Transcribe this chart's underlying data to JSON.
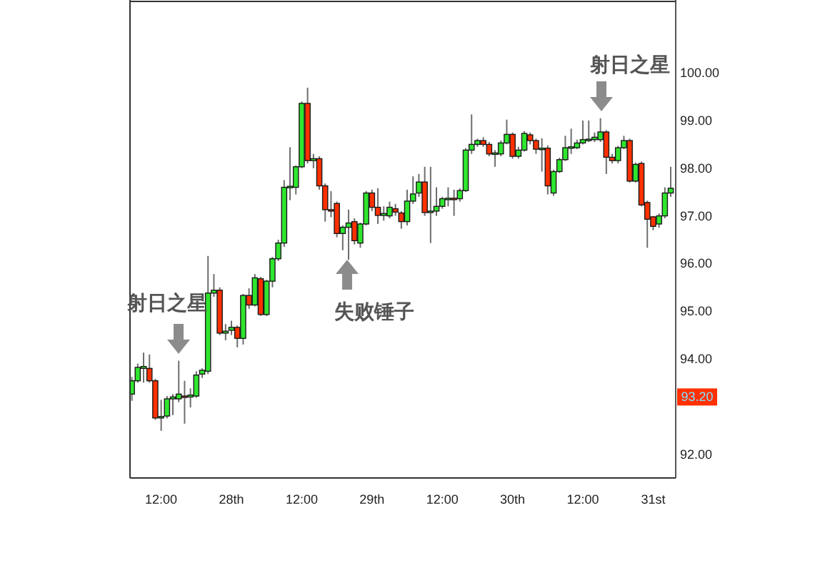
{
  "chart_data": {
    "type": "candlestick",
    "categories": [
      null,
      null,
      null,
      null,
      null,
      "12:00",
      null,
      null,
      null,
      null,
      null,
      null,
      null,
      null,
      null,
      null,
      null,
      "28th",
      null,
      null,
      null,
      null,
      null,
      null,
      null,
      null,
      null,
      null,
      null,
      "12:00",
      null,
      null,
      null,
      null,
      null,
      null,
      null,
      null,
      null,
      null,
      null,
      "29th",
      null,
      null,
      null,
      null,
      null,
      null,
      null,
      null,
      null,
      null,
      null,
      "12:00",
      null,
      null,
      null,
      null,
      null,
      null,
      null,
      null,
      null,
      null,
      null,
      "30th",
      null,
      null,
      null,
      null,
      null,
      null,
      null,
      null,
      null,
      null,
      null,
      "12:00",
      null,
      null,
      null,
      null,
      null,
      null,
      null,
      null,
      null,
      null,
      null,
      "31st",
      null,
      null,
      null
    ],
    "ohlc": [
      [
        93.26,
        93.62,
        93.12,
        93.54
      ],
      [
        93.54,
        93.9,
        93.5,
        93.82
      ],
      [
        93.8,
        94.13,
        93.5,
        93.84
      ],
      [
        93.8,
        94.09,
        93.5,
        93.54
      ],
      [
        93.54,
        93.58,
        92.72,
        92.76
      ],
      [
        92.76,
        93.14,
        92.49,
        92.79
      ],
      [
        92.8,
        93.22,
        92.75,
        93.16
      ],
      [
        93.16,
        93.26,
        92.82,
        93.2
      ],
      [
        93.16,
        93.96,
        93.09,
        93.26
      ],
      [
        93.22,
        93.54,
        92.64,
        93.2
      ],
      [
        93.2,
        93.38,
        92.98,
        93.24
      ],
      [
        93.22,
        93.74,
        93.18,
        93.66
      ],
      [
        93.68,
        93.8,
        93.6,
        93.76
      ],
      [
        93.74,
        96.16,
        93.68,
        95.38
      ],
      [
        95.38,
        95.78,
        95.3,
        95.44
      ],
      [
        95.44,
        95.5,
        94.5,
        94.54
      ],
      [
        94.54,
        94.73,
        94.39,
        94.58
      ],
      [
        94.6,
        94.8,
        94.5,
        94.66
      ],
      [
        94.66,
        94.7,
        94.24,
        94.43
      ],
      [
        94.43,
        95.36,
        94.3,
        95.33
      ],
      [
        95.33,
        95.48,
        95.05,
        95.13
      ],
      [
        95.13,
        95.78,
        95.1,
        95.7
      ],
      [
        95.68,
        95.72,
        94.9,
        94.93
      ],
      [
        94.93,
        95.66,
        94.9,
        95.63
      ],
      [
        95.63,
        96.14,
        95.5,
        96.1
      ],
      [
        96.1,
        96.5,
        96.05,
        96.43
      ],
      [
        96.43,
        97.75,
        96.35,
        97.6
      ],
      [
        97.6,
        98.44,
        97.33,
        97.62
      ],
      [
        97.6,
        98.06,
        97.45,
        98.03
      ],
      [
        98.03,
        99.4,
        98.0,
        99.36
      ],
      [
        99.36,
        99.69,
        98.1,
        98.16
      ],
      [
        98.16,
        98.3,
        98.0,
        98.2
      ],
      [
        98.2,
        98.25,
        97.55,
        97.63
      ],
      [
        97.63,
        97.68,
        96.88,
        97.13
      ],
      [
        97.13,
        97.52,
        96.97,
        97.1
      ],
      [
        97.26,
        97.3,
        96.55,
        96.63
      ],
      [
        96.63,
        96.8,
        96.28,
        96.76
      ],
      [
        96.76,
        97.13,
        96.08,
        96.85
      ],
      [
        96.88,
        96.95,
        96.4,
        96.48
      ],
      [
        96.43,
        96.86,
        96.33,
        96.83
      ],
      [
        96.83,
        97.52,
        96.8,
        97.48
      ],
      [
        97.48,
        97.55,
        97.1,
        97.18
      ],
      [
        97.18,
        97.58,
        96.83,
        97.01
      ],
      [
        97.01,
        97.2,
        96.9,
        97.05
      ],
      [
        97.0,
        97.3,
        96.95,
        97.18
      ],
      [
        97.15,
        97.25,
        97.0,
        97.08
      ],
      [
        97.06,
        97.1,
        96.73,
        96.88
      ],
      [
        96.88,
        97.55,
        96.8,
        97.31
      ],
      [
        97.31,
        97.83,
        97.25,
        97.46
      ],
      [
        97.48,
        97.88,
        97.4,
        97.71
      ],
      [
        97.71,
        98.03,
        97.0,
        97.07
      ],
      [
        97.07,
        98.03,
        96.43,
        97.1
      ],
      [
        97.1,
        97.6,
        97.0,
        97.2
      ],
      [
        97.2,
        97.4,
        97.15,
        97.36
      ],
      [
        97.36,
        97.6,
        97.2,
        97.37
      ],
      [
        97.37,
        97.55,
        97.0,
        97.36
      ],
      [
        97.36,
        97.58,
        97.3,
        97.53
      ],
      [
        97.53,
        98.42,
        97.5,
        98.38
      ],
      [
        98.38,
        99.13,
        98.3,
        98.5
      ],
      [
        98.5,
        98.62,
        98.45,
        98.58
      ],
      [
        98.58,
        98.65,
        98.45,
        98.5
      ],
      [
        98.5,
        98.55,
        98.25,
        98.3
      ],
      [
        98.3,
        98.38,
        98.03,
        98.32
      ],
      [
        98.3,
        98.58,
        98.25,
        98.53
      ],
      [
        98.53,
        99.02,
        98.5,
        98.71
      ],
      [
        98.71,
        98.75,
        98.2,
        98.25
      ],
      [
        98.25,
        98.45,
        98.2,
        98.38
      ],
      [
        98.38,
        98.78,
        98.35,
        98.73
      ],
      [
        98.7,
        98.75,
        98.5,
        98.58
      ],
      [
        98.58,
        98.62,
        98.3,
        98.4
      ],
      [
        98.4,
        98.63,
        97.93,
        98.42
      ],
      [
        98.42,
        98.48,
        97.45,
        97.63
      ],
      [
        97.48,
        97.97,
        97.42,
        97.93
      ],
      [
        97.93,
        98.22,
        97.9,
        98.18
      ],
      [
        98.18,
        98.68,
        98.15,
        98.43
      ],
      [
        98.43,
        98.83,
        98.3,
        98.45
      ],
      [
        98.43,
        98.6,
        98.4,
        98.53
      ],
      [
        98.53,
        99.0,
        98.5,
        98.6
      ],
      [
        98.6,
        99.0,
        98.55,
        98.61
      ],
      [
        98.6,
        98.75,
        98.55,
        98.65
      ],
      [
        98.6,
        99.05,
        98.55,
        98.76
      ],
      [
        98.76,
        98.8,
        97.88,
        98.23
      ],
      [
        98.23,
        98.3,
        98.1,
        98.16
      ],
      [
        98.16,
        98.47,
        98.1,
        98.43
      ],
      [
        98.43,
        98.68,
        98.4,
        98.58
      ],
      [
        98.58,
        98.62,
        97.7,
        97.73
      ],
      [
        97.73,
        98.12,
        97.7,
        98.08
      ],
      [
        98.1,
        98.14,
        97.2,
        97.23
      ],
      [
        97.28,
        97.32,
        96.33,
        96.93
      ],
      [
        96.98,
        97.0,
        96.7,
        96.78
      ],
      [
        96.83,
        97.05,
        96.75,
        97.0
      ],
      [
        97.0,
        97.6,
        96.95,
        97.48
      ],
      [
        97.48,
        98.03,
        97.4,
        97.58
      ]
    ],
    "colors": [
      "#2ee62e",
      "#2ee62e",
      "#2ee62e",
      "#ff3000",
      "#ff3000",
      "#2ee62e",
      "#2ee62e",
      "#2ee62e",
      "#2ee62e",
      "#ff3000",
      "#2ee62e",
      "#2ee62e",
      "#2ee62e",
      "#2ee62e",
      "#2ee62e",
      "#ff3000",
      "#2ee62e",
      "#2ee62e",
      "#ff3000",
      "#2ee62e",
      "#ff3000",
      "#2ee62e",
      "#ff3000",
      "#2ee62e",
      "#2ee62e",
      "#2ee62e",
      "#2ee62e",
      "#2ee62e",
      "#2ee62e",
      "#2ee62e",
      "#ff3000",
      "#2ee62e",
      "#ff3000",
      "#ff3000",
      "#ff3000",
      "#ff3000",
      "#2ee62e",
      "#2ee62e",
      "#ff3000",
      "#2ee62e",
      "#2ee62e",
      "#ff3000",
      "#ff3000",
      "#2ee62e",
      "#2ee62e",
      "#ff3000",
      "#ff3000",
      "#2ee62e",
      "#2ee62e",
      "#2ee62e",
      "#ff3000",
      "#2ee62e",
      "#2ee62e",
      "#2ee62e",
      "#2ee62e",
      "#ff3000",
      "#2ee62e",
      "#2ee62e",
      "#2ee62e",
      "#2ee62e",
      "#ff3000",
      "#ff3000",
      "#2ee62e",
      "#2ee62e",
      "#2ee62e",
      "#ff3000",
      "#2ee62e",
      "#2ee62e",
      "#ff3000",
      "#ff3000",
      "#2ee62e",
      "#ff3000",
      "#2ee62e",
      "#2ee62e",
      "#2ee62e",
      "#2ee62e",
      "#2ee62e",
      "#2ee62e",
      "#2ee62e",
      "#2ee62e",
      "#2ee62e",
      "#ff3000",
      "#ff3000",
      "#2ee62e",
      "#2ee62e",
      "#ff3000",
      "#2ee62e",
      "#ff3000",
      "#ff3000",
      "#ff3000",
      "#2ee62e",
      "#2ee62e",
      "#2ee62e"
    ],
    "ylim": [
      91.5,
      101.5
    ],
    "yticks": [
      {
        "value": 92,
        "label": "92.00"
      },
      {
        "value": 94,
        "label": "94.00"
      },
      {
        "value": 95,
        "label": "95.00"
      },
      {
        "value": 96,
        "label": "96.00"
      },
      {
        "value": 97,
        "label": "97.00"
      },
      {
        "value": 98,
        "label": "98.00"
      },
      {
        "value": 99,
        "label": "99.00"
      },
      {
        "value": 100,
        "label": "100.00"
      }
    ],
    "annotations": [
      "射日之星",
      "失败锤子",
      "射日之星",
      {
        "text": "93.20",
        "y": 93.2
      }
    ]
  }
}
